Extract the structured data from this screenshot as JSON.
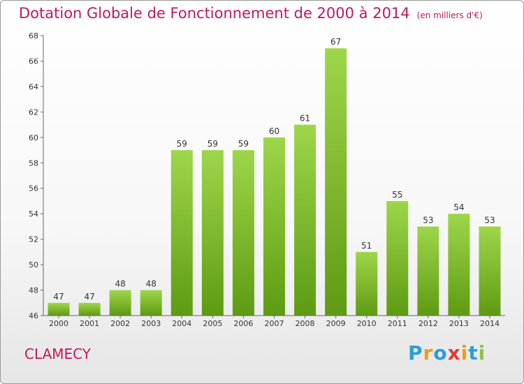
{
  "chart_data": {
    "type": "bar",
    "title": "Dotation Globale de Fonctionnement de 2000 à 2014",
    "subtitle": "(en milliers d'€)",
    "categories": [
      "2000",
      "2001",
      "2002",
      "2003",
      "2004",
      "2005",
      "2006",
      "2007",
      "2008",
      "2009",
      "2010",
      "2011",
      "2012",
      "2013",
      "2014"
    ],
    "values": [
      47,
      47,
      48,
      48,
      59,
      59,
      59,
      60,
      61,
      67,
      51,
      55,
      53,
      54,
      53
    ],
    "ylim": [
      46,
      68
    ],
    "yticks": [
      46,
      48,
      50,
      52,
      54,
      56,
      58,
      60,
      62,
      64,
      66,
      68
    ],
    "xlabel": "",
    "ylabel": "",
    "grid": false,
    "bar_color_top": "#9ed64a",
    "bar_color_bottom": "#5e9b12"
  },
  "footer": {
    "place": "CLAMECY"
  },
  "logo": {
    "letters": [
      "P",
      "r",
      "o",
      "x",
      "i",
      "t",
      "i"
    ],
    "colors": [
      "#2a9fd6",
      "#f39c12",
      "#2a9fd6",
      "#e53935",
      "#f39c12",
      "#2a9fd6",
      "#8bc34a"
    ]
  },
  "colors": {
    "title": "#c2185b",
    "axis": "#555555"
  }
}
